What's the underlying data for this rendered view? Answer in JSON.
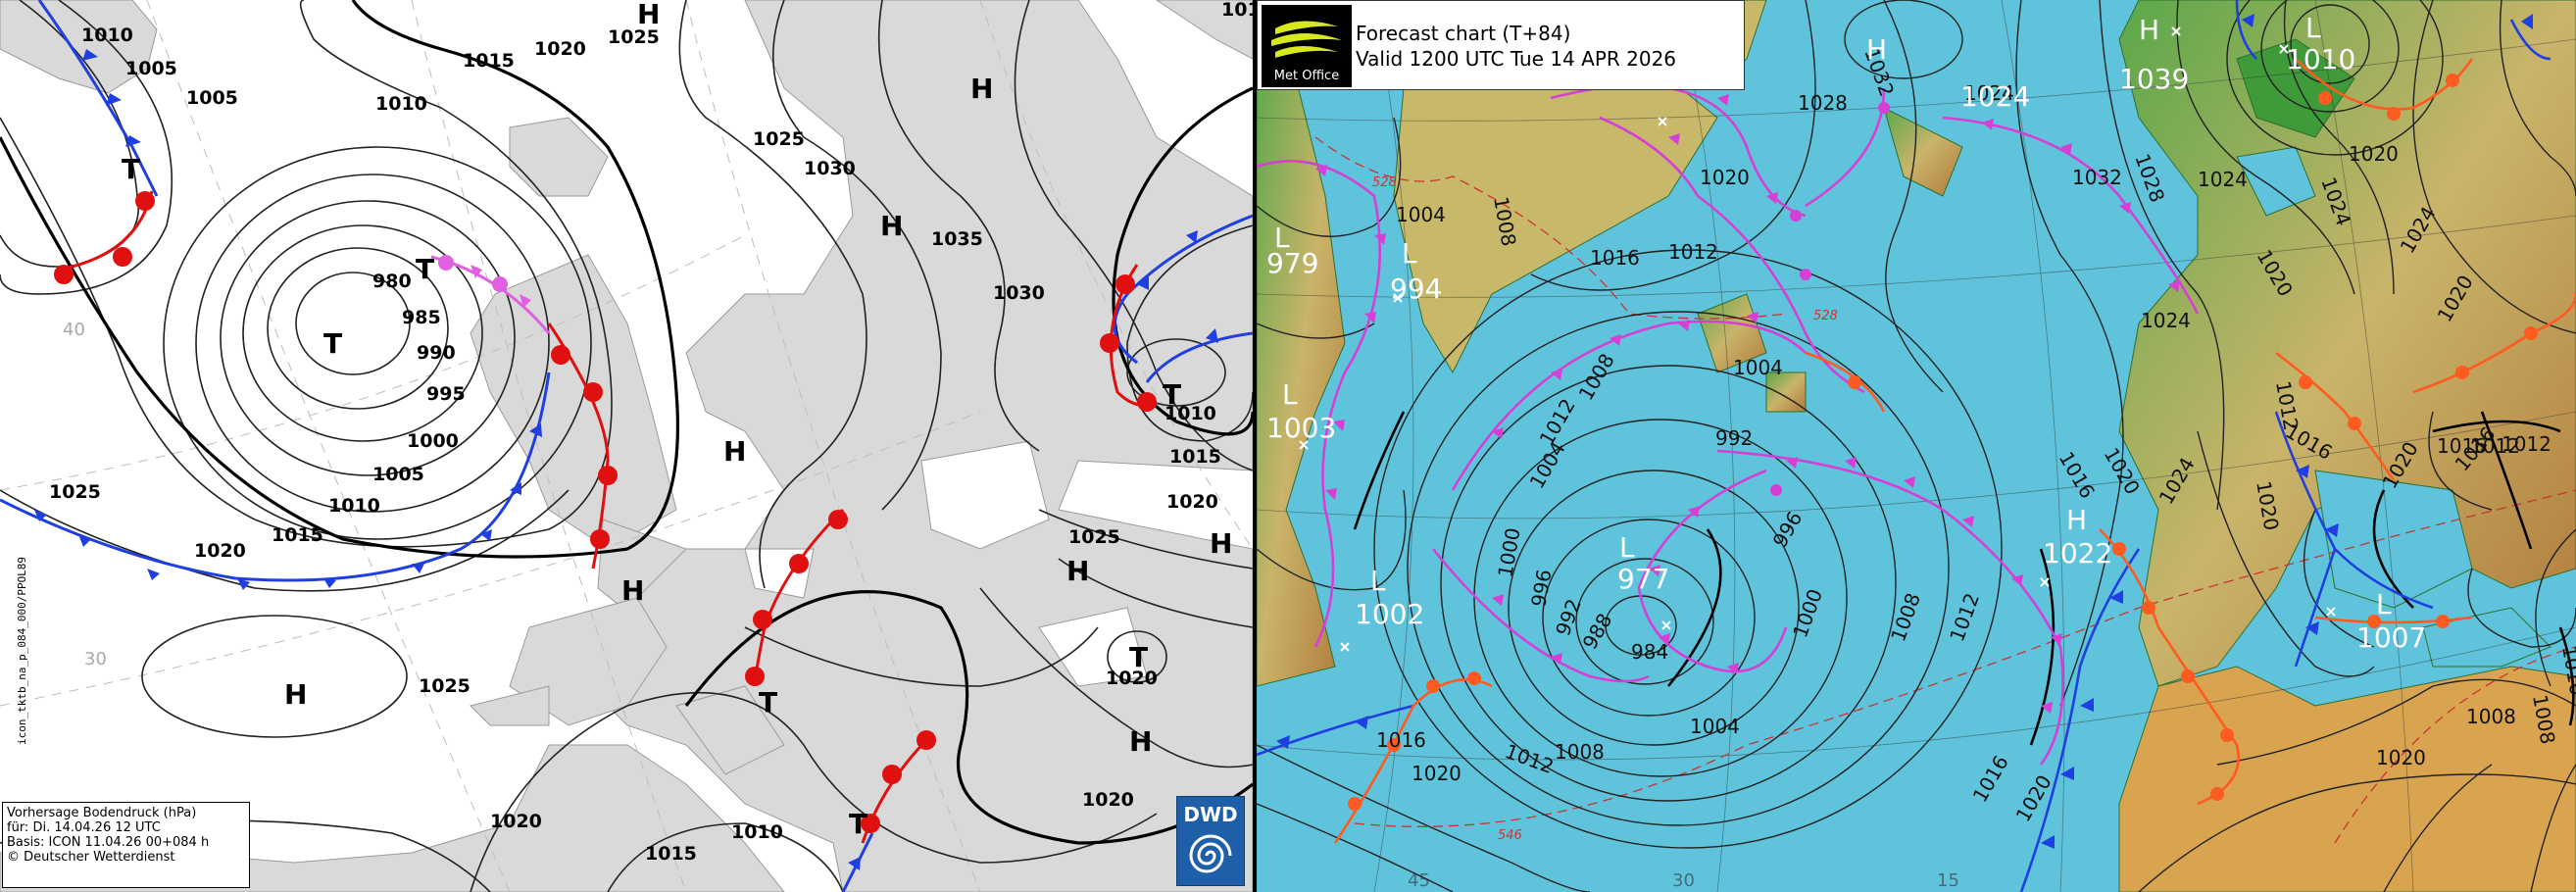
{
  "dwd": {
    "info": {
      "line1": "Vorhersage Bodendruck (hPa)",
      "line2": "für:  Di. 14.04.26  12 UTC",
      "line3": "Basis: ICON  11.04.26 00+084 h",
      "line4": "© Deutscher Wetterdienst"
    },
    "sidebar_text": "icon_tktb_na_p_084_000/PPOL89",
    "logo_text": "DWD",
    "lat_labels": [
      "40",
      "30"
    ],
    "isobar_labels": [
      {
        "t": "1010"
      },
      {
        "t": "1005"
      },
      {
        "t": "1005"
      },
      {
        "t": "1015"
      },
      {
        "t": "1020"
      },
      {
        "t": "1025"
      },
      {
        "t": "1010"
      },
      {
        "t": "1025"
      },
      {
        "t": "1030"
      },
      {
        "t": "1035"
      },
      {
        "t": "1030"
      },
      {
        "t": "1010"
      },
      {
        "t": "980"
      },
      {
        "t": "985"
      },
      {
        "t": "990"
      },
      {
        "t": "995"
      },
      {
        "t": "1000"
      },
      {
        "t": "1005"
      },
      {
        "t": "1010"
      },
      {
        "t": "1015"
      },
      {
        "t": "1020"
      },
      {
        "t": "1025"
      },
      {
        "t": "1010"
      },
      {
        "t": "1015"
      },
      {
        "t": "1020"
      },
      {
        "t": "1025"
      },
      {
        "t": "1020"
      },
      {
        "t": "1020"
      },
      {
        "t": "1025"
      },
      {
        "t": "1020"
      },
      {
        "t": "1015"
      },
      {
        "t": "1010"
      }
    ],
    "systems": [
      {
        "t": "H"
      },
      {
        "t": "H"
      },
      {
        "t": "T"
      },
      {
        "t": "T"
      },
      {
        "t": "T"
      },
      {
        "t": "H"
      },
      {
        "t": "H"
      },
      {
        "t": "T"
      },
      {
        "t": "H"
      },
      {
        "t": "H"
      },
      {
        "t": "H"
      },
      {
        "t": "T"
      },
      {
        "t": "H"
      },
      {
        "t": "T"
      },
      {
        "t": "T"
      }
    ]
  },
  "metoffice": {
    "logo_text": "Met Office",
    "title": "Forecast chart (T+84)",
    "valid": "Valid 1200 UTC Tue 14 APR 2026",
    "isobar_labels": [
      {
        "t": "1032"
      },
      {
        "t": "1024"
      },
      {
        "t": "1020"
      },
      {
        "t": "1028"
      },
      {
        "t": "1032"
      },
      {
        "t": "1028"
      },
      {
        "t": "1024"
      },
      {
        "t": "1020"
      },
      {
        "t": "1024"
      },
      {
        "t": "1016"
      },
      {
        "t": "1012"
      },
      {
        "t": "1008"
      },
      {
        "t": "1004"
      },
      {
        "t": "1012"
      },
      {
        "t": "1004"
      },
      {
        "t": "1008"
      },
      {
        "t": "1004"
      },
      {
        "t": "992"
      },
      {
        "t": "996"
      },
      {
        "t": "1000"
      },
      {
        "t": "996"
      },
      {
        "t": "992"
      },
      {
        "t": "988"
      },
      {
        "t": "984"
      },
      {
        "t": "1000"
      },
      {
        "t": "1004"
      },
      {
        "t": "1008"
      },
      {
        "t": "1012"
      },
      {
        "t": "1016"
      },
      {
        "t": "1020"
      },
      {
        "t": "1008"
      },
      {
        "t": "1012"
      },
      {
        "t": "1016"
      },
      {
        "t": "1020"
      },
      {
        "t": "1024"
      },
      {
        "t": "1016"
      },
      {
        "t": "1020"
      },
      {
        "t": "1012"
      },
      {
        "t": "1016"
      },
      {
        "t": "1020"
      },
      {
        "t": "1020"
      },
      {
        "t": "1016"
      },
      {
        "t": "1012"
      },
      {
        "t": "1008"
      },
      {
        "t": "1016"
      },
      {
        "t": "1020"
      },
      {
        "t": "1024"
      },
      {
        "t": "1020"
      },
      {
        "t": "1012"
      },
      {
        "t": "1016"
      },
      {
        "t": "1008"
      },
      {
        "t": "1024"
      },
      {
        "t": "1020"
      }
    ],
    "thickness_labels": [
      "528",
      "528",
      "546"
    ],
    "grid_labels": [
      "45",
      "30",
      "15"
    ],
    "systems": [
      {
        "t": "H"
      },
      {
        "t": "1039"
      },
      {
        "t": "L"
      },
      {
        "t": "1010"
      },
      {
        "t": "1024"
      },
      {
        "t": "L"
      },
      {
        "t": "979"
      },
      {
        "t": "L"
      },
      {
        "t": "994"
      },
      {
        "t": "L"
      },
      {
        "t": "1003"
      },
      {
        "t": "L"
      },
      {
        "t": "977"
      },
      {
        "t": "L"
      },
      {
        "t": "1002"
      },
      {
        "t": "H"
      },
      {
        "t": "1022"
      },
      {
        "t": "L"
      },
      {
        "t": "1007"
      }
    ]
  }
}
